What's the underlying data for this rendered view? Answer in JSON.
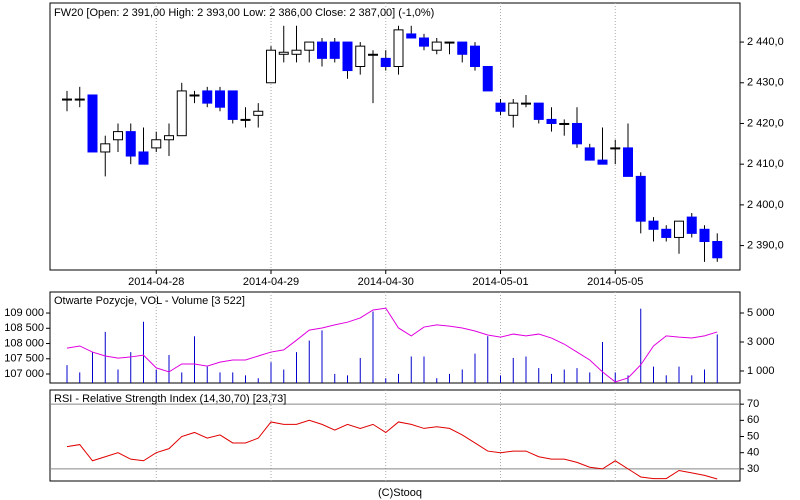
{
  "chart_data": [
    {
      "type": "candlestick",
      "title": "FW20 [Open: 2 391,00  High: 2 393,00  Low: 2 386,00  Close: 2 387,00] (-1,0%)",
      "categories": [
        null,
        null,
        null,
        null,
        null,
        null,
        null,
        "2014-04-28",
        null,
        null,
        null,
        null,
        null,
        null,
        null,
        null,
        "2014-04-29",
        null,
        null,
        null,
        null,
        null,
        null,
        null,
        null,
        "2014-04-30",
        null,
        null,
        null,
        null,
        null,
        null,
        null,
        null,
        "2014-05-01",
        null,
        null,
        null,
        null,
        null,
        null,
        null,
        null,
        "2014-05-05",
        null,
        null,
        null,
        null,
        null,
        null,
        null,
        null
      ],
      "open": [
        2426,
        2426,
        2427,
        2413,
        2416,
        2418,
        2413,
        2414,
        2416,
        2417,
        2427,
        2428,
        2428,
        2428,
        2421,
        2422,
        2430,
        2437,
        2437,
        2438,
        2440,
        2440,
        2440,
        2434,
        2437,
        2436,
        2434,
        2442,
        2441,
        2438,
        2440,
        2440,
        2439,
        2434,
        2425,
        2422,
        2425,
        2425,
        2421,
        2420,
        2420,
        2414,
        2411,
        2414,
        2414,
        2407,
        2396,
        2394,
        2392,
        2397,
        2394,
        2391
      ],
      "high": [
        2428,
        2429,
        2427,
        2417,
        2420,
        2420,
        2419,
        2418,
        2420,
        2430,
        2428,
        2429,
        2429,
        2428,
        2424,
        2425,
        2439,
        2444,
        2444,
        2440,
        2441,
        2441,
        2440,
        2440,
        2438,
        2438,
        2444,
        2444,
        2442,
        2441,
        2440,
        2440,
        2440,
        2434,
        2426,
        2426,
        2427,
        2425,
        2424,
        2421,
        2424,
        2415,
        2419,
        2416,
        2420,
        2408,
        2397,
        2395,
        2396,
        2398,
        2395,
        2393
      ],
      "low": [
        2423,
        2424,
        2413,
        2407,
        2413,
        2410,
        2410,
        2413,
        2412,
        2417,
        2425,
        2424,
        2423,
        2420,
        2419,
        2419,
        2430,
        2435,
        2435,
        2435,
        2434,
        2435,
        2431,
        2432,
        2425,
        2433,
        2432,
        2441,
        2438,
        2437,
        2437,
        2435,
        2433,
        2428,
        2422,
        2419,
        2424,
        2420,
        2418,
        2417,
        2414,
        2411,
        2410,
        2410,
        2407,
        2393,
        2391,
        2391,
        2388,
        2392,
        2386,
        2386
      ],
      "close": [
        2426,
        2426,
        2413,
        2415,
        2418,
        2412,
        2410,
        2416,
        2417,
        2428,
        2427,
        2425,
        2424,
        2421,
        2421,
        2423,
        2438,
        2437.5,
        2438,
        2440,
        2436,
        2436,
        2433,
        2439,
        2437,
        2434,
        2443,
        2441,
        2439,
        2440,
        2440,
        2437,
        2434,
        2428,
        2423,
        2425,
        2425,
        2421,
        2420,
        2420,
        2415,
        2411,
        2410,
        2414,
        2407,
        2396,
        2394,
        2392,
        2396,
        2393,
        2391,
        2387
      ],
      "up_color": "#ffffff",
      "down_color": "#0000ff",
      "ylim": [
        2384,
        2449.6
      ],
      "yticks": [
        {
          "value": 2390,
          "label": "2 390,0"
        },
        {
          "value": 2400,
          "label": "2 400,0"
        },
        {
          "value": 2410,
          "label": "2 410,0"
        },
        {
          "value": 2420,
          "label": "2 420,0"
        },
        {
          "value": 2430,
          "label": "2 430,0"
        },
        {
          "value": 2440,
          "label": "2 440,0"
        }
      ],
      "grid": true
    },
    {
      "type": "combo",
      "title": "Otwarte Pozycje, VOL - Volume [3 522]",
      "series": [
        {
          "type": "line",
          "color": "#e000e0",
          "values": [
            107850,
            107920,
            107720,
            107590,
            107520,
            107560,
            107620,
            107200,
            107070,
            107330,
            107330,
            107260,
            107390,
            107460,
            107460,
            107590,
            107720,
            107790,
            108110,
            108440,
            108510,
            108610,
            108700,
            108840,
            109100,
            109160,
            108510,
            108250,
            108540,
            108610,
            108570,
            108510,
            108410,
            108280,
            108210,
            108310,
            108250,
            108310,
            108180,
            107980,
            107720,
            107460,
            107070,
            106740,
            106870,
            107300,
            107920,
            108250,
            108210,
            108180,
            108250,
            108380
          ]
        },
        {
          "type": "bar",
          "axis": "y2",
          "color": "#0000cc",
          "values": [
            1400,
            900,
            2300,
            3700,
            1100,
            2300,
            4400,
            1100,
            2100,
            900,
            3400,
            1300,
            900,
            900,
            700,
            500,
            1600,
            1100,
            2300,
            3100,
            3800,
            800,
            700,
            1900,
            5100,
            500,
            800,
            2000,
            2000,
            500,
            800,
            1100,
            2200,
            3400,
            700,
            1900,
            2000,
            1200,
            800,
            1100,
            1200,
            900,
            3000,
            900,
            700,
            5300,
            1300,
            700,
            1300,
            700,
            1100,
            3522
          ]
        }
      ],
      "ylim": [
        106705,
        109690
      ],
      "yticks": [
        {
          "value": 107000,
          "label": "107 000"
        },
        {
          "value": 107500,
          "label": "107 500"
        },
        {
          "value": 108000,
          "label": "108 000"
        },
        {
          "value": 108500,
          "label": "108 500"
        },
        {
          "value": 109000,
          "label": "109 000"
        }
      ],
      "y2lim": [
        170,
        6450
      ],
      "y2ticks": [
        {
          "value": 1000,
          "label": "1 000"
        },
        {
          "value": 3000,
          "label": "3 000"
        },
        {
          "value": 5000,
          "label": "5 000"
        }
      ],
      "grid": true
    },
    {
      "type": "line",
      "title": "RSI - Relative Strength Index (14,30,70) [23,73]",
      "color": "#e00000",
      "values": [
        43.75,
        45,
        35,
        37.5,
        40,
        36,
        35,
        40,
        42.5,
        50,
        52.5,
        49,
        51,
        46,
        46,
        49,
        59,
        57.5,
        57.5,
        60,
        57.5,
        54,
        57.5,
        55,
        57.5,
        52.5,
        59,
        57.5,
        55,
        56,
        55,
        51,
        46,
        41,
        40,
        41,
        41,
        37.5,
        36,
        36,
        34,
        31,
        30,
        35,
        30,
        25,
        24,
        24,
        29,
        27.5,
        26,
        23.73
      ],
      "ylim": [
        22.5,
        78.75
      ],
      "yticks": [
        30,
        40,
        50,
        60,
        70
      ],
      "hlines": [
        30,
        70
      ],
      "grid": true
    }
  ],
  "footer": "(C)Stooq"
}
